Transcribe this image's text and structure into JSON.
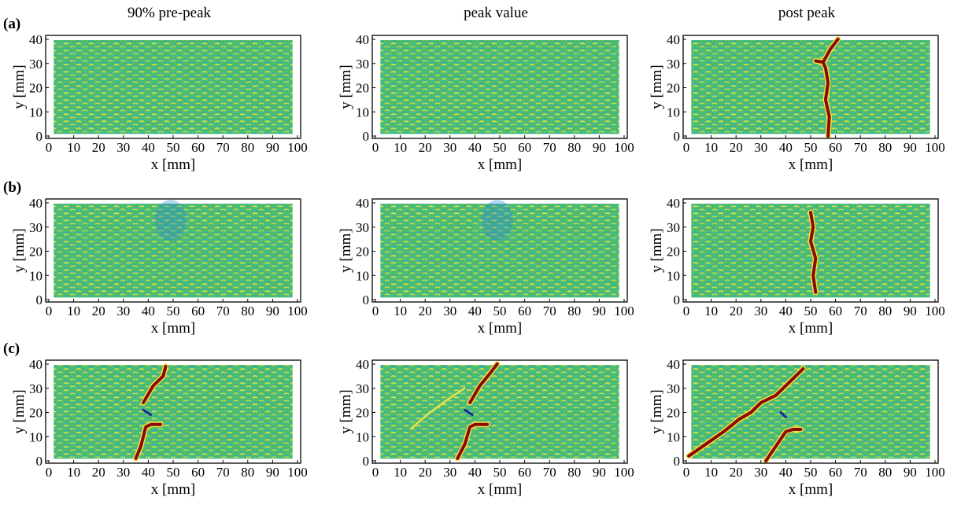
{
  "column_titles": [
    "90% pre-peak",
    "peak value",
    "post peak"
  ],
  "rows": [
    {
      "label": "(a)",
      "panels": [
        {
          "xlabel": "x [mm]",
          "ylabel": "y [mm]",
          "xlim": [
            0,
            100
          ],
          "ylim": [
            0,
            40
          ],
          "xticks": [
            0,
            10,
            20,
            30,
            40,
            50,
            60,
            70,
            80,
            90,
            100
          ],
          "yticks": [
            0,
            10,
            20,
            30,
            40
          ]
        },
        {
          "xlabel": "x [mm]",
          "ylabel": "y [mm]",
          "xlim": [
            0,
            100
          ],
          "ylim": [
            0,
            40
          ],
          "xticks": [
            0,
            10,
            20,
            30,
            40,
            50,
            60,
            70,
            80,
            90,
            100
          ],
          "yticks": [
            0,
            10,
            20,
            30,
            40
          ]
        },
        {
          "xlabel": "x [mm]",
          "ylabel": "y [mm]",
          "xlim": [
            0,
            100
          ],
          "ylim": [
            0,
            40
          ],
          "xticks": [
            0,
            10,
            20,
            30,
            40,
            50,
            60,
            70,
            80,
            90,
            100
          ],
          "yticks": [
            0,
            10,
            20,
            30,
            40
          ]
        }
      ]
    },
    {
      "label": "(b)",
      "panels": [
        {
          "xlabel": "x [mm]",
          "ylabel": "y [mm]",
          "xlim": [
            0,
            100
          ],
          "ylim": [
            0,
            40
          ],
          "xticks": [
            0,
            10,
            20,
            30,
            40,
            50,
            60,
            70,
            80,
            90,
            100
          ],
          "yticks": [
            0,
            10,
            20,
            30,
            40
          ]
        },
        {
          "xlabel": "x [mm]",
          "ylabel": "y [mm]",
          "xlim": [
            0,
            100
          ],
          "ylim": [
            0,
            40
          ],
          "xticks": [
            0,
            10,
            20,
            30,
            40,
            50,
            60,
            70,
            80,
            90,
            100
          ],
          "yticks": [
            0,
            10,
            20,
            30,
            40
          ]
        },
        {
          "xlabel": "x [mm]",
          "ylabel": "y [mm]",
          "xlim": [
            0,
            100
          ],
          "ylim": [
            0,
            40
          ],
          "xticks": [
            0,
            10,
            20,
            30,
            40,
            50,
            60,
            70,
            80,
            90,
            100
          ],
          "yticks": [
            0,
            10,
            20,
            30,
            40
          ]
        }
      ]
    },
    {
      "label": "(c)",
      "panels": [
        {
          "xlabel": "x [mm]",
          "ylabel": "y [mm]",
          "xlim": [
            0,
            100
          ],
          "ylim": [
            0,
            40
          ],
          "xticks": [
            0,
            10,
            20,
            30,
            40,
            50,
            60,
            70,
            80,
            90,
            100
          ],
          "yticks": [
            0,
            10,
            20,
            30,
            40
          ]
        },
        {
          "xlabel": "x [mm]",
          "ylabel": "y [mm]",
          "xlim": [
            0,
            100
          ],
          "ylim": [
            0,
            40
          ],
          "xticks": [
            0,
            10,
            20,
            30,
            40,
            50,
            60,
            70,
            80,
            90,
            100
          ],
          "yticks": [
            0,
            10,
            20,
            30,
            40
          ]
        },
        {
          "xlabel": "x [mm]",
          "ylabel": "y [mm]",
          "xlim": [
            0,
            100
          ],
          "ylim": [
            0,
            40
          ],
          "xticks": [
            0,
            10,
            20,
            30,
            40,
            50,
            60,
            70,
            80,
            90,
            100
          ],
          "yticks": [
            0,
            10,
            20,
            30,
            40
          ]
        }
      ]
    }
  ]
}
